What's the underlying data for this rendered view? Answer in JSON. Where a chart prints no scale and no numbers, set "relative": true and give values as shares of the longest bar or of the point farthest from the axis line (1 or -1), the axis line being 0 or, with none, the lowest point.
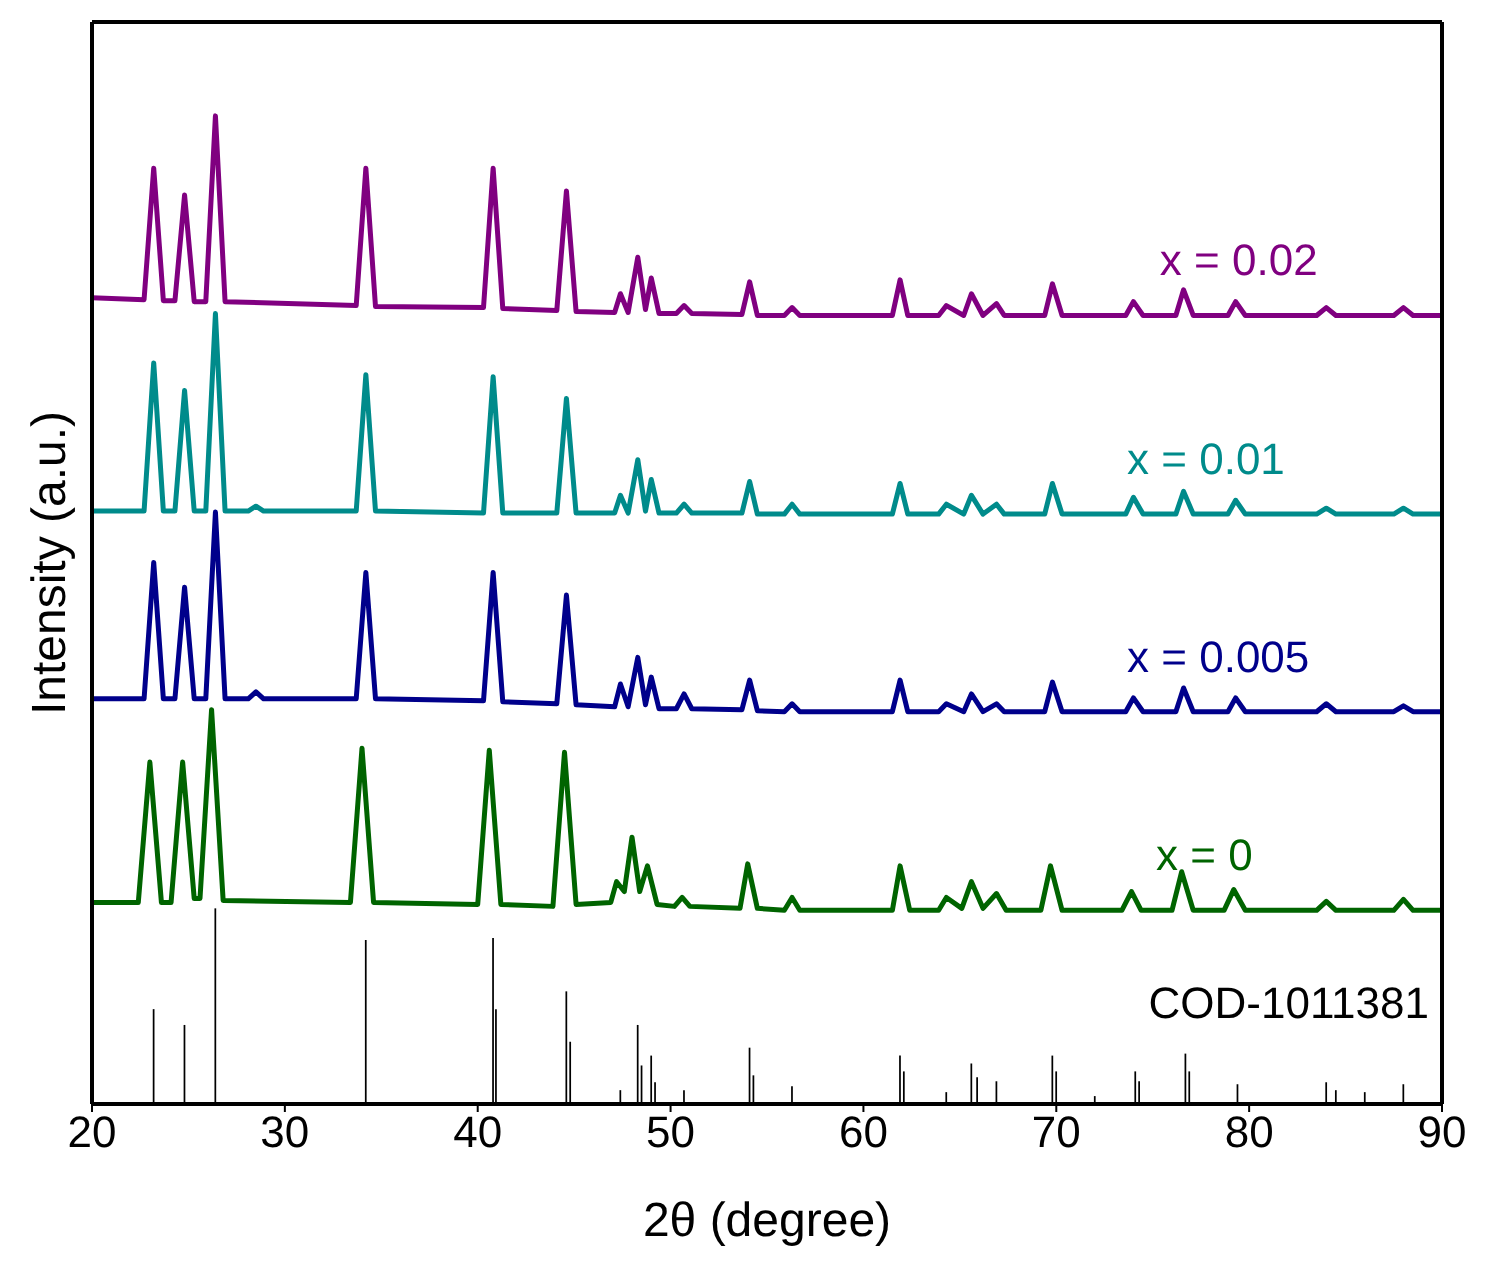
{
  "chart_data": {
    "type": "line",
    "relative": true,
    "xlabel": "2θ (degree)",
    "ylabel": "Intensity (a.u.)",
    "xlim": [
      20,
      90
    ],
    "xticks": [
      20,
      30,
      40,
      50,
      60,
      70,
      80,
      90
    ],
    "tick_labels": "x",
    "series": [
      {
        "name": "x = 0.02",
        "color": "#800080",
        "x": [
          20,
          22.7,
          23.2,
          23.7,
          24.3,
          24.8,
          25.3,
          25.9,
          26.4,
          26.9,
          33.7,
          34.2,
          34.7,
          40.3,
          40.8,
          41.3,
          44.1,
          44.6,
          45.1,
          47.1,
          47.4,
          47.8,
          48.3,
          48.7,
          49.0,
          49.4,
          50.3,
          50.7,
          51.1,
          53.7,
          54.1,
          54.5,
          55.9,
          56.3,
          56.7,
          61.5,
          61.9,
          62.3,
          63.9,
          64.3,
          65.2,
          65.6,
          66.2,
          66.9,
          67.3,
          69.4,
          69.8,
          70.3,
          73.6,
          74.0,
          74.5,
          76.2,
          76.6,
          77.1,
          78.9,
          79.3,
          79.8,
          83.5,
          84.0,
          84.5,
          87.5,
          88.0,
          88.5,
          90
        ],
        "values": [
          0.816,
          0.814,
          0.947,
          0.813,
          0.813,
          0.92,
          0.812,
          0.812,
          1.0,
          0.812,
          0.808,
          0.947,
          0.807,
          0.806,
          0.947,
          0.805,
          0.803,
          0.924,
          0.802,
          0.801,
          0.82,
          0.801,
          0.857,
          0.804,
          0.836,
          0.8,
          0.8,
          0.808,
          0.8,
          0.799,
          0.832,
          0.798,
          0.798,
          0.806,
          0.798,
          0.798,
          0.834,
          0.798,
          0.798,
          0.808,
          0.798,
          0.82,
          0.798,
          0.81,
          0.798,
          0.798,
          0.83,
          0.798,
          0.798,
          0.812,
          0.798,
          0.798,
          0.824,
          0.798,
          0.798,
          0.812,
          0.798,
          0.798,
          0.806,
          0.798,
          0.798,
          0.806,
          0.798,
          0.798
        ]
      },
      {
        "name": "x = 0.01",
        "color": "#008b8b",
        "x": [
          20,
          22.7,
          23.2,
          23.7,
          24.3,
          24.8,
          25.3,
          25.9,
          26.4,
          26.9,
          28.1,
          28.5,
          28.9,
          33.7,
          34.2,
          34.7,
          40.3,
          40.8,
          41.3,
          44.1,
          44.6,
          45.1,
          47.1,
          47.4,
          47.8,
          48.3,
          48.7,
          49.0,
          49.4,
          50.3,
          50.7,
          51.1,
          53.7,
          54.1,
          54.5,
          55.9,
          56.3,
          56.7,
          61.5,
          61.9,
          62.3,
          63.9,
          64.3,
          65.2,
          65.6,
          66.2,
          66.9,
          67.3,
          69.4,
          69.8,
          70.3,
          73.6,
          74.0,
          74.5,
          76.2,
          76.6,
          77.1,
          78.9,
          79.3,
          79.8,
          83.5,
          84.0,
          84.5,
          87.5,
          88.0,
          88.5,
          90
        ],
        "values": [
          0.6,
          0.6,
          0.75,
          0.6,
          0.6,
          0.722,
          0.6,
          0.6,
          0.8,
          0.6,
          0.6,
          0.605,
          0.6,
          0.6,
          0.738,
          0.6,
          0.598,
          0.736,
          0.598,
          0.598,
          0.714,
          0.598,
          0.598,
          0.616,
          0.598,
          0.652,
          0.6,
          0.632,
          0.598,
          0.598,
          0.607,
          0.598,
          0.598,
          0.63,
          0.597,
          0.597,
          0.607,
          0.597,
          0.597,
          0.628,
          0.597,
          0.597,
          0.607,
          0.597,
          0.616,
          0.597,
          0.607,
          0.597,
          0.597,
          0.628,
          0.597,
          0.597,
          0.614,
          0.597,
          0.597,
          0.62,
          0.597,
          0.597,
          0.611,
          0.597,
          0.597,
          0.603,
          0.597,
          0.597,
          0.603,
          0.597,
          0.597
        ]
      },
      {
        "name": "x = 0.005",
        "color": "#00008b",
        "x": [
          20,
          22.7,
          23.2,
          23.7,
          24.3,
          24.8,
          25.3,
          25.9,
          26.4,
          26.9,
          28.1,
          28.5,
          28.9,
          33.7,
          34.2,
          34.7,
          40.3,
          40.8,
          41.3,
          44.1,
          44.6,
          45.1,
          47.1,
          47.4,
          47.8,
          48.3,
          48.7,
          49.0,
          49.4,
          50.3,
          50.7,
          51.1,
          53.7,
          54.1,
          54.5,
          55.9,
          56.3,
          56.7,
          61.5,
          61.9,
          62.3,
          63.9,
          64.3,
          65.2,
          65.6,
          66.2,
          66.9,
          67.3,
          69.4,
          69.8,
          70.3,
          73.6,
          74.0,
          74.5,
          76.2,
          76.6,
          77.1,
          78.9,
          79.3,
          79.8,
          83.5,
          84.0,
          84.5,
          87.5,
          88.0,
          88.5,
          90
        ],
        "values": [
          0.41,
          0.41,
          0.548,
          0.41,
          0.41,
          0.523,
          0.41,
          0.41,
          0.599,
          0.41,
          0.41,
          0.417,
          0.41,
          0.41,
          0.538,
          0.41,
          0.408,
          0.538,
          0.407,
          0.405,
          0.515,
          0.404,
          0.402,
          0.425,
          0.402,
          0.452,
          0.404,
          0.432,
          0.4,
          0.4,
          0.415,
          0.4,
          0.399,
          0.429,
          0.398,
          0.397,
          0.405,
          0.397,
          0.397,
          0.429,
          0.397,
          0.397,
          0.405,
          0.397,
          0.415,
          0.397,
          0.405,
          0.397,
          0.397,
          0.427,
          0.397,
          0.397,
          0.411,
          0.397,
          0.397,
          0.421,
          0.397,
          0.397,
          0.411,
          0.397,
          0.397,
          0.405,
          0.397,
          0.397,
          0.403,
          0.397,
          0.397
        ]
      },
      {
        "name": "x = 0",
        "color": "#006400",
        "x": [
          20,
          22.4,
          23.0,
          23.6,
          24.1,
          24.7,
          25.3,
          25.6,
          26.2,
          26.8,
          33.4,
          34.0,
          34.6,
          40.0,
          40.6,
          41.2,
          43.9,
          44.5,
          45.1,
          46.9,
          47.2,
          47.6,
          48.0,
          48.4,
          48.8,
          49.3,
          50.2,
          50.6,
          51.0,
          53.6,
          54.0,
          54.5,
          55.9,
          56.3,
          56.7,
          61.5,
          61.9,
          62.4,
          63.9,
          64.3,
          65.1,
          65.6,
          66.2,
          66.9,
          67.4,
          69.2,
          69.7,
          70.3,
          73.4,
          73.9,
          74.4,
          76.0,
          76.5,
          77.1,
          78.7,
          79.2,
          79.8,
          83.5,
          84.0,
          84.5,
          87.5,
          88.0,
          88.5,
          90
        ],
        "values": [
          0.204,
          0.204,
          0.346,
          0.204,
          0.204,
          0.346,
          0.208,
          0.208,
          0.399,
          0.206,
          0.204,
          0.36,
          0.204,
          0.202,
          0.358,
          0.202,
          0.2,
          0.356,
          0.202,
          0.204,
          0.225,
          0.215,
          0.27,
          0.215,
          0.241,
          0.202,
          0.2,
          0.209,
          0.2,
          0.198,
          0.243,
          0.198,
          0.196,
          0.209,
          0.196,
          0.196,
          0.241,
          0.196,
          0.196,
          0.209,
          0.198,
          0.225,
          0.198,
          0.213,
          0.196,
          0.196,
          0.241,
          0.196,
          0.196,
          0.215,
          0.196,
          0.196,
          0.235,
          0.196,
          0.196,
          0.217,
          0.196,
          0.196,
          0.205,
          0.196,
          0.196,
          0.207,
          0.196,
          0.196
        ]
      },
      {
        "name": "COD-1011381",
        "type": "bar",
        "color": "#000000",
        "x": [
          23.2,
          24.8,
          26.4,
          34.2,
          40.8,
          40.95,
          44.6,
          44.8,
          47.4,
          48.3,
          48.5,
          49.0,
          49.2,
          50.7,
          54.1,
          54.3,
          56.3,
          61.9,
          62.1,
          64.3,
          65.6,
          65.9,
          66.9,
          69.8,
          70.0,
          72.0,
          74.1,
          74.3,
          76.7,
          76.9,
          79.4,
          84.0,
          84.5,
          86.0,
          88.0
        ],
        "values": [
          0.096,
          0.08,
          0.198,
          0.166,
          0.168,
          0.096,
          0.114,
          0.063,
          0.014,
          0.08,
          0.039,
          0.049,
          0.022,
          0.014,
          0.057,
          0.029,
          0.018,
          0.049,
          0.033,
          0.012,
          0.041,
          0.027,
          0.023,
          0.049,
          0.033,
          0.008,
          0.033,
          0.023,
          0.051,
          0.033,
          0.02,
          0.022,
          0.014,
          0.012,
          0.02
        ]
      }
    ]
  }
}
